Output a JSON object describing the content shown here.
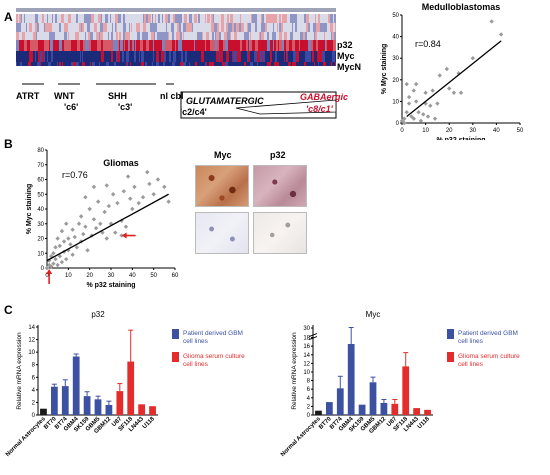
{
  "panels": {
    "a": "A",
    "b": "B",
    "c": "C"
  },
  "heatmap": {
    "row_labels": [
      "p32",
      "Myc",
      "MycN"
    ],
    "groups": [
      "ATRT",
      "WNT",
      "SHH",
      "nl cbl"
    ],
    "subgroups": [
      "'c6'",
      "'c3'"
    ],
    "glut_label": "GLUTAMATERGIC",
    "glut_sub": "'c2/c4'",
    "gaba_label": "GABAergic",
    "gaba_sub": "'c8/c1'",
    "colors": {
      "red": "#c8102e",
      "navy": "#1c2a7a"
    }
  },
  "chart_data": [
    {
      "type": "scatter",
      "title": "Medulloblastomas",
      "xlabel": "% p32 staining",
      "ylabel": "% Myc staining",
      "annotation": "r=0.84",
      "xlim": [
        0,
        50
      ],
      "ylim": [
        0,
        50
      ],
      "xticks": [
        0,
        10,
        20,
        30,
        40,
        50
      ],
      "yticks": [
        0,
        10,
        20,
        30,
        40,
        50
      ],
      "points": [
        [
          0,
          1
        ],
        [
          1,
          2
        ],
        [
          1,
          0
        ],
        [
          2,
          5
        ],
        [
          3,
          9
        ],
        [
          3,
          12
        ],
        [
          4,
          3
        ],
        [
          5,
          2
        ],
        [
          5,
          15
        ],
        [
          6,
          10
        ],
        [
          7,
          5
        ],
        [
          8,
          1
        ],
        [
          9,
          4
        ],
        [
          10,
          9
        ],
        [
          10,
          14
        ],
        [
          11,
          3
        ],
        [
          12,
          8
        ],
        [
          13,
          15
        ],
        [
          15,
          9
        ],
        [
          20,
          16
        ],
        [
          22,
          14
        ],
        [
          24,
          23
        ],
        [
          25,
          14
        ],
        [
          38,
          47
        ],
        [
          42,
          41
        ],
        [
          30,
          30
        ],
        [
          2,
          18
        ],
        [
          6,
          18
        ],
        [
          16,
          22
        ],
        [
          19,
          25
        ],
        [
          14,
          2
        ]
      ],
      "fit": [
        [
          2,
          3
        ],
        [
          42,
          38
        ]
      ],
      "color": "#9b9b9b"
    },
    {
      "type": "scatter",
      "title": "Gliomas",
      "xlabel": "% p32 staining",
      "ylabel": "% Myc staining",
      "annotation": "r=0.76",
      "xlim": [
        0,
        60
      ],
      "ylim": [
        0,
        80
      ],
      "xticks": [
        0,
        10,
        20,
        30,
        40,
        50,
        60
      ],
      "yticks": [
        0,
        10,
        20,
        30,
        40,
        50,
        60,
        70,
        80
      ],
      "points": [
        [
          0,
          0
        ],
        [
          1,
          2
        ],
        [
          1,
          5
        ],
        [
          2,
          1
        ],
        [
          2,
          8
        ],
        [
          3,
          3
        ],
        [
          3,
          10
        ],
        [
          4,
          6
        ],
        [
          4,
          14
        ],
        [
          5,
          2
        ],
        [
          5,
          20
        ],
        [
          6,
          8
        ],
        [
          6,
          15
        ],
        [
          7,
          4
        ],
        [
          7,
          25
        ],
        [
          8,
          11
        ],
        [
          8,
          18
        ],
        [
          9,
          6
        ],
        [
          9,
          30
        ],
        [
          10,
          12
        ],
        [
          10,
          20
        ],
        [
          11,
          16
        ],
        [
          12,
          9
        ],
        [
          12,
          26
        ],
        [
          13,
          21
        ],
        [
          14,
          14
        ],
        [
          15,
          30
        ],
        [
          16,
          18
        ],
        [
          16,
          35
        ],
        [
          17,
          23
        ],
        [
          18,
          28
        ],
        [
          19,
          12
        ],
        [
          20,
          40
        ],
        [
          21,
          22
        ],
        [
          22,
          33
        ],
        [
          23,
          27
        ],
        [
          24,
          45
        ],
        [
          25,
          30
        ],
        [
          26,
          24
        ],
        [
          27,
          38
        ],
        [
          28,
          20
        ],
        [
          29,
          42
        ],
        [
          30,
          30
        ],
        [
          31,
          50
        ],
        [
          32,
          24
        ],
        [
          33,
          44
        ],
        [
          35,
          32
        ],
        [
          36,
          52
        ],
        [
          37,
          28
        ],
        [
          39,
          47
        ],
        [
          40,
          40
        ],
        [
          41,
          55
        ],
        [
          43,
          44
        ],
        [
          45,
          48
        ],
        [
          48,
          57
        ],
        [
          50,
          50
        ],
        [
          52,
          60
        ],
        [
          55,
          55
        ],
        [
          57,
          45
        ],
        [
          47,
          65
        ],
        [
          38,
          62
        ],
        [
          28,
          56
        ],
        [
          22,
          55
        ],
        [
          18,
          48
        ],
        [
          35,
          22
        ]
      ],
      "fit": [
        [
          0,
          5
        ],
        [
          57,
          50
        ]
      ],
      "color": "#9b9b9b",
      "arrows": "red arrows",
      "arrow_color": "#e02020"
    },
    {
      "type": "bar",
      "title": "p32",
      "ylabel": "Relative mRNA expression",
      "ylim": [
        0,
        14
      ],
      "yticks": [
        0,
        2,
        4,
        6,
        8,
        10,
        12,
        14
      ],
      "categories": [
        "Normal Astrocytes",
        "BT70",
        "BT74",
        "GBM4",
        "SK159",
        "GBM5",
        "GBM12",
        "U87",
        "SF118",
        "LN443",
        "U118"
      ],
      "values": [
        1,
        4.5,
        4.6,
        9.3,
        3.0,
        2.5,
        1.6,
        3.8,
        8.5,
        1.7,
        1.4
      ],
      "errors": [
        0,
        0.4,
        1.0,
        0.4,
        0.7,
        0.5,
        0.6,
        1.2,
        5.0,
        0,
        0
      ],
      "groups": [
        "black",
        "blue",
        "blue",
        "blue",
        "blue",
        "blue",
        "blue",
        "red",
        "red",
        "red",
        "red"
      ],
      "legend": [
        "Patient derived GBM cell lines",
        "Glioma serum culture cell lines"
      ],
      "colors": {
        "black": "#1a1a1a",
        "blue": "#3d51a3",
        "red": "#e32c2c"
      }
    },
    {
      "type": "bar",
      "title": "Myc",
      "ylabel": "Relative mRNA expression",
      "ylim": [
        0,
        30
      ],
      "yticks": [
        0,
        2,
        4,
        6,
        8,
        10,
        12,
        14,
        16,
        18,
        30
      ],
      "axis_break": [
        18,
        29
      ],
      "categories": [
        "Normal Astrocytes",
        "BT70",
        "BT74",
        "GBM4",
        "SK159",
        "GBM5",
        "GBM12",
        "U87",
        "SF118",
        "LN443",
        "U118"
      ],
      "values": [
        1,
        3.0,
        6.2,
        16.5,
        2.4,
        7.6,
        2.8,
        2.6,
        11.3,
        1.6,
        1.2
      ],
      "errors": [
        0,
        0,
        2.8,
        2.5,
        0,
        1.2,
        0.8,
        1.0,
        3.2,
        0,
        0
      ],
      "groups": [
        "black",
        "blue",
        "blue",
        "blue",
        "blue",
        "blue",
        "blue",
        "red",
        "red",
        "red",
        "red"
      ],
      "legend": [
        "Patient derived GBM cell lines",
        "Glioma serum culture cell lines"
      ],
      "colors": {
        "black": "#1a1a1a",
        "blue": "#3d51a3",
        "red": "#e32c2c"
      }
    }
  ],
  "ihc": {
    "cols": [
      "Myc",
      "p32"
    ]
  }
}
